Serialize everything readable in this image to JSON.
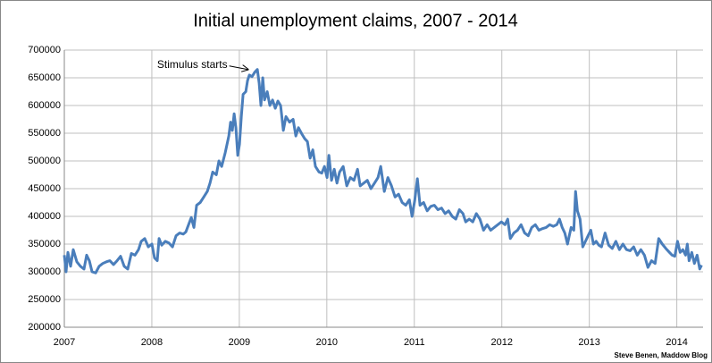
{
  "chart_data": {
    "type": "line",
    "title": "Initial unemployment claims, 2007 - 2014",
    "credit": "Steve Benen, Maddow Blog",
    "annotation": {
      "text": "Stimulus starts",
      "x": 2009.13,
      "y": 665000
    },
    "xlim": [
      2007,
      2014.3
    ],
    "xticks": [
      2007,
      2008,
      2009,
      2010,
      2011,
      2012,
      2013,
      2014
    ],
    "ylim": [
      200000,
      700000
    ],
    "yticks": [
      200000,
      250000,
      300000,
      350000,
      400000,
      450000,
      500000,
      550000,
      600000,
      650000,
      700000
    ],
    "grid": true,
    "series": [
      {
        "color": "#4a7ebb",
        "x": [
          2007.0,
          2007.02,
          2007.041,
          2007.072,
          2007.102,
          2007.143,
          2007.184,
          2007.225,
          2007.255,
          2007.286,
          2007.317,
          2007.358,
          2007.398,
          2007.439,
          2007.48,
          2007.521,
          2007.562,
          2007.603,
          2007.643,
          2007.684,
          2007.725,
          2007.766,
          2007.807,
          2007.848,
          2007.879,
          2007.919,
          2007.96,
          2008.001,
          2008.031,
          2008.062,
          2008.083,
          2008.113,
          2008.154,
          2008.195,
          2008.236,
          2008.277,
          2008.318,
          2008.359,
          2008.389,
          2008.42,
          2008.451,
          2008.481,
          2008.512,
          2008.553,
          2008.594,
          2008.634,
          2008.665,
          2008.696,
          2008.737,
          2008.767,
          2008.798,
          2008.839,
          2008.88,
          2008.9,
          2008.92,
          2008.941,
          2008.961,
          2008.982,
          2009.002,
          2009.023,
          2009.043,
          2009.074,
          2009.094,
          2009.115,
          2009.145,
          2009.176,
          2009.206,
          2009.227,
          2009.247,
          2009.268,
          2009.288,
          2009.319,
          2009.349,
          2009.38,
          2009.411,
          2009.441,
          2009.472,
          2009.503,
          2009.533,
          2009.574,
          2009.615,
          2009.646,
          2009.676,
          2009.717,
          2009.748,
          2009.778,
          2009.809,
          2009.84,
          2009.87,
          2009.911,
          2009.942,
          2009.973,
          2010.003,
          2010.024,
          2010.054,
          2010.085,
          2010.116,
          2010.146,
          2010.187,
          2010.228,
          2010.269,
          2010.31,
          2010.351,
          2010.381,
          2010.422,
          2010.463,
          2010.504,
          2010.545,
          2010.585,
          2010.616,
          2010.657,
          2010.698,
          2010.739,
          2010.78,
          2010.82,
          2010.861,
          2010.902,
          2010.943,
          2010.974,
          2011.004,
          2011.035,
          2011.065,
          2011.106,
          2011.147,
          2011.188,
          2011.229,
          2011.27,
          2011.311,
          2011.352,
          2011.392,
          2011.433,
          2011.474,
          2011.515,
          2011.556,
          2011.587,
          2011.627,
          2011.668,
          2011.709,
          2011.75,
          2011.791,
          2011.832,
          2011.873,
          2011.913,
          2011.954,
          2011.995,
          2012.036,
          2012.067,
          2012.097,
          2012.138,
          2012.179,
          2012.22,
          2012.261,
          2012.302,
          2012.342,
          2012.383,
          2012.424,
          2012.465,
          2012.506,
          2012.547,
          2012.588,
          2012.628,
          2012.659,
          2012.69,
          2012.72,
          2012.751,
          2012.771,
          2012.792,
          2012.823,
          2012.843,
          2012.864,
          2012.894,
          2012.925,
          2012.956,
          2012.986,
          2013.017,
          2013.047,
          2013.078,
          2013.109,
          2013.139,
          2013.18,
          2013.221,
          2013.262,
          2013.303,
          2013.344,
          2013.384,
          2013.425,
          2013.466,
          2013.507,
          2013.548,
          2013.589,
          2013.63,
          2013.67,
          2013.711,
          2013.752,
          2013.793,
          2013.834,
          2013.875,
          2013.916,
          2013.946,
          2013.977,
          2014.008,
          2014.038,
          2014.069,
          2014.1,
          2014.12,
          2014.14,
          2014.171,
          2014.201,
          2014.232,
          2014.262,
          2014.283
        ],
        "values": [
          330000,
          300000,
          335000,
          310000,
          340000,
          318000,
          310000,
          305000,
          330000,
          320000,
          300000,
          298000,
          310000,
          315000,
          318000,
          320000,
          313000,
          320000,
          328000,
          310000,
          305000,
          333000,
          330000,
          340000,
          355000,
          360000,
          345000,
          350000,
          325000,
          320000,
          360000,
          348000,
          355000,
          352000,
          345000,
          365000,
          370000,
          368000,
          372000,
          385000,
          398000,
          380000,
          420000,
          425000,
          435000,
          445000,
          460000,
          480000,
          475000,
          500000,
          490000,
          515000,
          545000,
          570000,
          555000,
          585000,
          560000,
          510000,
          530000,
          580000,
          620000,
          625000,
          645000,
          655000,
          652000,
          660000,
          665000,
          640000,
          600000,
          650000,
          610000,
          625000,
          600000,
          610000,
          595000,
          608000,
          600000,
          555000,
          580000,
          570000,
          575000,
          545000,
          560000,
          548000,
          540000,
          535000,
          505000,
          520000,
          490000,
          480000,
          478000,
          490000,
          470000,
          510000,
          465000,
          485000,
          460000,
          480000,
          490000,
          455000,
          470000,
          465000,
          485000,
          455000,
          460000,
          465000,
          450000,
          460000,
          470000,
          490000,
          445000,
          470000,
          455000,
          435000,
          440000,
          425000,
          420000,
          430000,
          400000,
          428000,
          468000,
          420000,
          425000,
          410000,
          418000,
          420000,
          412000,
          415000,
          405000,
          410000,
          400000,
          395000,
          412000,
          405000,
          390000,
          395000,
          390000,
          405000,
          395000,
          375000,
          385000,
          375000,
          380000,
          385000,
          390000,
          385000,
          395000,
          360000,
          370000,
          375000,
          385000,
          370000,
          365000,
          380000,
          385000,
          375000,
          378000,
          380000,
          385000,
          382000,
          385000,
          395000,
          380000,
          370000,
          350000,
          365000,
          380000,
          375000,
          445000,
          410000,
          395000,
          345000,
          355000,
          365000,
          375000,
          350000,
          355000,
          348000,
          345000,
          370000,
          348000,
          342000,
          355000,
          340000,
          350000,
          340000,
          338000,
          345000,
          330000,
          340000,
          330000,
          308000,
          320000,
          315000,
          360000,
          350000,
          342000,
          335000,
          330000,
          328000,
          355000,
          335000,
          340000,
          330000,
          350000,
          320000,
          335000,
          315000,
          330000,
          305000,
          312000
        ]
      }
    ]
  }
}
